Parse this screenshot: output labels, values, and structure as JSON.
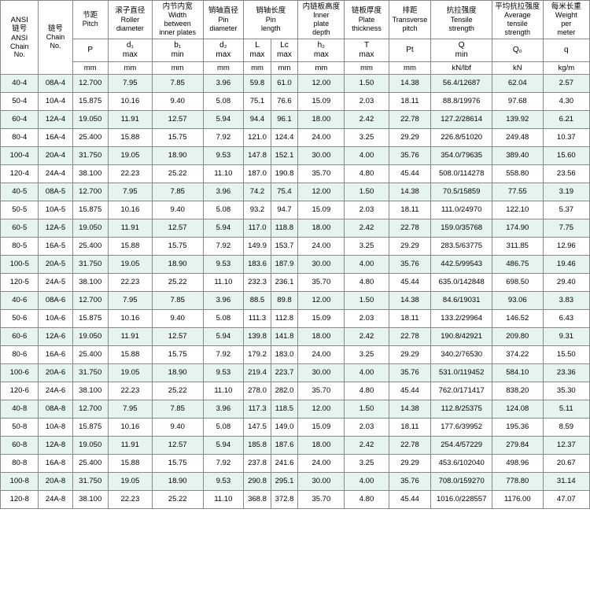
{
  "table": {
    "colors": {
      "alt_row_bg": "#e6f4ee",
      "border": "#888888",
      "bg": "#ffffff"
    },
    "columns": [
      {
        "key": "ansi",
        "width": 45,
        "label_cn": "ANSI\n链号",
        "label_en": "ANSI\nChain\nNo.",
        "sym": "",
        "unit": ""
      },
      {
        "key": "chain",
        "width": 40,
        "label_cn": "链号",
        "label_en": "Chain\nNo.",
        "sym": "",
        "unit": ""
      },
      {
        "key": "p",
        "width": 42,
        "label_cn": "节距",
        "label_en": "Pitch",
        "sym": "P",
        "unit": "mm"
      },
      {
        "key": "d1",
        "width": 52,
        "label_cn": "滚子直径",
        "label_en": "Roller\ndiameter",
        "sym": "d₁\nmax",
        "unit": "mm"
      },
      {
        "key": "b1",
        "width": 60,
        "label_cn": "内节内宽",
        "label_en": "Width\nbetween\ninner plates",
        "sym": "b₁\nmin",
        "unit": "mm"
      },
      {
        "key": "d2",
        "width": 48,
        "label_cn": "销轴直径",
        "label_en": "Pin\ndiameter",
        "sym": "d₂\nmax",
        "unit": "mm"
      },
      {
        "key": "L",
        "width": 32,
        "label_cn": "销轴长度",
        "label_en": "Pin\nlength",
        "sym": "L\nmax",
        "unit": "mm"
      },
      {
        "key": "Lc",
        "width": 32,
        "label_cn": "",
        "label_en": "",
        "sym": "Lc\nmax",
        "unit": "mm"
      },
      {
        "key": "h2",
        "width": 55,
        "label_cn": "内链板高度",
        "label_en": "Inner\nplate\ndepth",
        "sym": "h₂\nmax",
        "unit": "mm"
      },
      {
        "key": "T",
        "width": 52,
        "label_cn": "链板厚度",
        "label_en": "Plate\nthickness",
        "sym": "T\nmax",
        "unit": "mm"
      },
      {
        "key": "Pt",
        "width": 50,
        "label_cn": "排距",
        "label_en": "Transverse\npitch",
        "sym": "Pt",
        "unit": "mm"
      },
      {
        "key": "Q",
        "width": 72,
        "label_cn": "抗拉强度",
        "label_en": "Tensile\nstrength",
        "sym": "Q\nmin",
        "unit": "kN/lbf"
      },
      {
        "key": "Q0",
        "width": 60,
        "label_cn": "平均抗拉强度",
        "label_en": "Average\ntensile\nstrength",
        "sym": "Q₀",
        "unit": "kN"
      },
      {
        "key": "q",
        "width": 55,
        "label_cn": "每米长重",
        "label_en": "Weight\nper\nmeter",
        "sym": "q",
        "unit": "kg/m"
      }
    ],
    "rows": [
      [
        "40-4",
        "08A-4",
        "12.700",
        "7.95",
        "7.85",
        "3.96",
        "59.8",
        "61.0",
        "12.00",
        "1.50",
        "14.38",
        "56.4/12687",
        "62.04",
        "2.57"
      ],
      [
        "50-4",
        "10A-4",
        "15.875",
        "10.16",
        "9.40",
        "5.08",
        "75.1",
        "76.6",
        "15.09",
        "2.03",
        "18.11",
        "88.8/19976",
        "97.68",
        "4.30"
      ],
      [
        "60-4",
        "12A-4",
        "19.050",
        "11.91",
        "12.57",
        "5.94",
        "94.4",
        "96.1",
        "18.00",
        "2.42",
        "22.78",
        "127.2/28614",
        "139.92",
        "6.21"
      ],
      [
        "80-4",
        "16A-4",
        "25.400",
        "15.88",
        "15.75",
        "7.92",
        "121.0",
        "124.4",
        "24.00",
        "3.25",
        "29.29",
        "226.8/51020",
        "249.48",
        "10.37"
      ],
      [
        "100-4",
        "20A-4",
        "31.750",
        "19.05",
        "18.90",
        "9.53",
        "147.8",
        "152.1",
        "30.00",
        "4.00",
        "35.76",
        "354.0/79635",
        "389.40",
        "15.60"
      ],
      [
        "120-4",
        "24A-4",
        "38.100",
        "22.23",
        "25.22",
        "11.10",
        "187.0",
        "190.8",
        "35.70",
        "4.80",
        "45.44",
        "508.0/114278",
        "558.80",
        "23.56"
      ],
      [
        "40-5",
        "08A-5",
        "12.700",
        "7.95",
        "7.85",
        "3.96",
        "74.2",
        "75.4",
        "12.00",
        "1.50",
        "14.38",
        "70.5/15859",
        "77.55",
        "3.19"
      ],
      [
        "50-5",
        "10A-5",
        "15.875",
        "10.16",
        "9.40",
        "5.08",
        "93.2",
        "94.7",
        "15.09",
        "2.03",
        "18.11",
        "111.0/24970",
        "122.10",
        "5.37"
      ],
      [
        "60-5",
        "12A-5",
        "19.050",
        "11.91",
        "12.57",
        "5.94",
        "117.0",
        "118.8",
        "18.00",
        "2.42",
        "22.78",
        "159.0/35768",
        "174.90",
        "7.75"
      ],
      [
        "80-5",
        "16A-5",
        "25.400",
        "15.88",
        "15.75",
        "7.92",
        "149.9",
        "153.7",
        "24.00",
        "3.25",
        "29.29",
        "283.5/63775",
        "311.85",
        "12.96"
      ],
      [
        "100-5",
        "20A-5",
        "31.750",
        "19.05",
        "18.90",
        "9.53",
        "183.6",
        "187.9",
        "30.00",
        "4.00",
        "35.76",
        "442.5/99543",
        "486.75",
        "19.46"
      ],
      [
        "120-5",
        "24A-5",
        "38.100",
        "22.23",
        "25.22",
        "11.10",
        "232.3",
        "236.1",
        "35.70",
        "4.80",
        "45.44",
        "635.0/142848",
        "698.50",
        "29.40"
      ],
      [
        "40-6",
        "08A-6",
        "12.700",
        "7.95",
        "7.85",
        "3.96",
        "88.5",
        "89.8",
        "12.00",
        "1.50",
        "14.38",
        "84.6/19031",
        "93.06",
        "3.83"
      ],
      [
        "50-6",
        "10A-6",
        "15.875",
        "10.16",
        "9.40",
        "5.08",
        "111.3",
        "112.8",
        "15.09",
        "2.03",
        "18.11",
        "133.2/29964",
        "146.52",
        "6.43"
      ],
      [
        "60-6",
        "12A-6",
        "19.050",
        "11.91",
        "12.57",
        "5.94",
        "139.8",
        "141.8",
        "18.00",
        "2.42",
        "22.78",
        "190.8/42921",
        "209.80",
        "9.31"
      ],
      [
        "80-6",
        "16A-6",
        "25.400",
        "15.88",
        "15.75",
        "7.92",
        "179.2",
        "183.0",
        "24.00",
        "3.25",
        "29.29",
        "340.2/76530",
        "374.22",
        "15.50"
      ],
      [
        "100-6",
        "20A-6",
        "31.750",
        "19.05",
        "18.90",
        "9.53",
        "219.4",
        "223.7",
        "30.00",
        "4.00",
        "35.76",
        "531.0/119452",
        "584.10",
        "23.36"
      ],
      [
        "120-6",
        "24A-6",
        "38.100",
        "22.23",
        "25.22",
        "11.10",
        "278.0",
        "282.0",
        "35.70",
        "4.80",
        "45.44",
        "762.0/171417",
        "838.20",
        "35.30"
      ],
      [
        "40-8",
        "08A-8",
        "12.700",
        "7.95",
        "7.85",
        "3.96",
        "117.3",
        "118.5",
        "12.00",
        "1.50",
        "14.38",
        "112.8/25375",
        "124.08",
        "5.11"
      ],
      [
        "50-8",
        "10A-8",
        "15.875",
        "10.16",
        "9.40",
        "5.08",
        "147.5",
        "149.0",
        "15.09",
        "2.03",
        "18.11",
        "177.6/39952",
        "195.36",
        "8.59"
      ],
      [
        "60-8",
        "12A-8",
        "19.050",
        "11.91",
        "12.57",
        "5.94",
        "185.8",
        "187.6",
        "18.00",
        "2.42",
        "22.78",
        "254.4/57229",
        "279.84",
        "12.37"
      ],
      [
        "80-8",
        "16A-8",
        "25.400",
        "15.88",
        "15.75",
        "7.92",
        "237.8",
        "241.6",
        "24.00",
        "3.25",
        "29.29",
        "453.6/102040",
        "498.96",
        "20.67"
      ],
      [
        "100-8",
        "20A-8",
        "31.750",
        "19.05",
        "18.90",
        "9.53",
        "290.8",
        "295.1",
        "30.00",
        "4.00",
        "35.76",
        "708.0/159270",
        "778.80",
        "31.14"
      ],
      [
        "120-8",
        "24A-8",
        "38.100",
        "22.23",
        "25.22",
        "11.10",
        "368.8",
        "372.8",
        "35.70",
        "4.80",
        "45.44",
        "1016.0/228557",
        "1176.00",
        "47.07"
      ]
    ]
  }
}
